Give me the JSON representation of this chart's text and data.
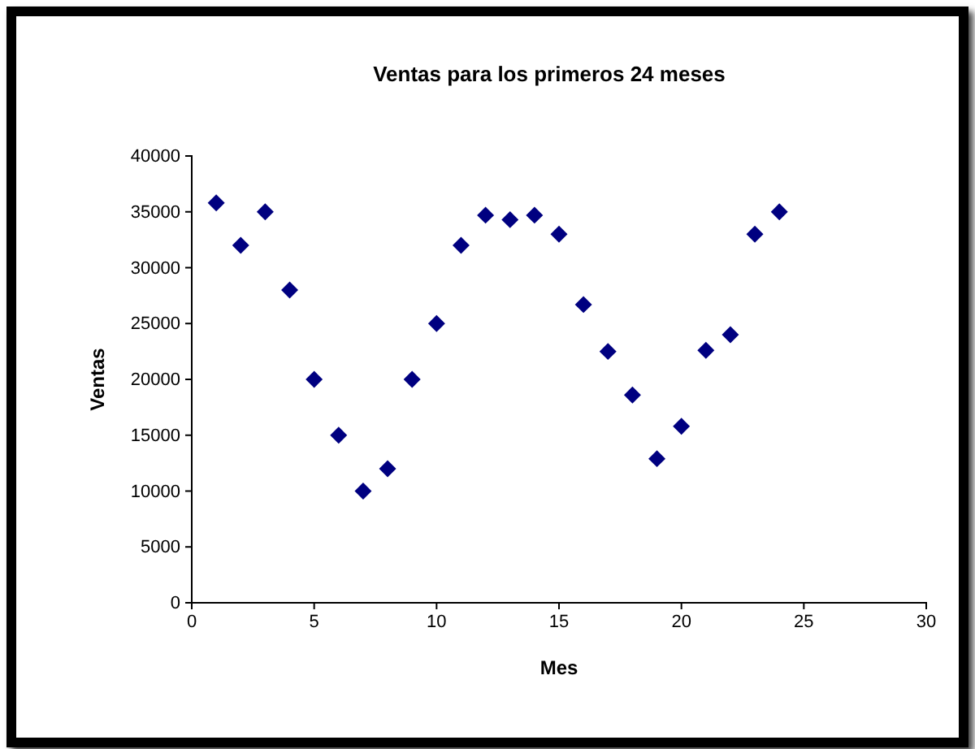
{
  "chart_data": {
    "type": "scatter",
    "title": "Ventas para los primeros 24 meses",
    "xlabel": "Mes",
    "ylabel": "Ventas",
    "x": [
      1,
      2,
      3,
      4,
      5,
      6,
      7,
      8,
      9,
      10,
      11,
      12,
      13,
      14,
      15,
      16,
      17,
      18,
      19,
      20,
      21,
      22,
      23,
      24
    ],
    "series": [
      {
        "color": "#000080",
        "values": [
          35800,
          32000,
          35000,
          28000,
          20000,
          15000,
          10000,
          12000,
          20000,
          25000,
          32000,
          34700,
          34300,
          34700,
          33000,
          26700,
          22500,
          18600,
          12900,
          15800,
          22600,
          24000,
          33000,
          35000
        ]
      }
    ],
    "xlim": [
      0,
      30
    ],
    "xticks": [
      0,
      5,
      10,
      15,
      20,
      25,
      30
    ],
    "ylim": [
      0,
      40000
    ],
    "yticks": [
      0,
      5000,
      10000,
      15000,
      20000,
      25000,
      30000,
      35000,
      40000
    ],
    "marker": "diamond",
    "grid": false
  }
}
